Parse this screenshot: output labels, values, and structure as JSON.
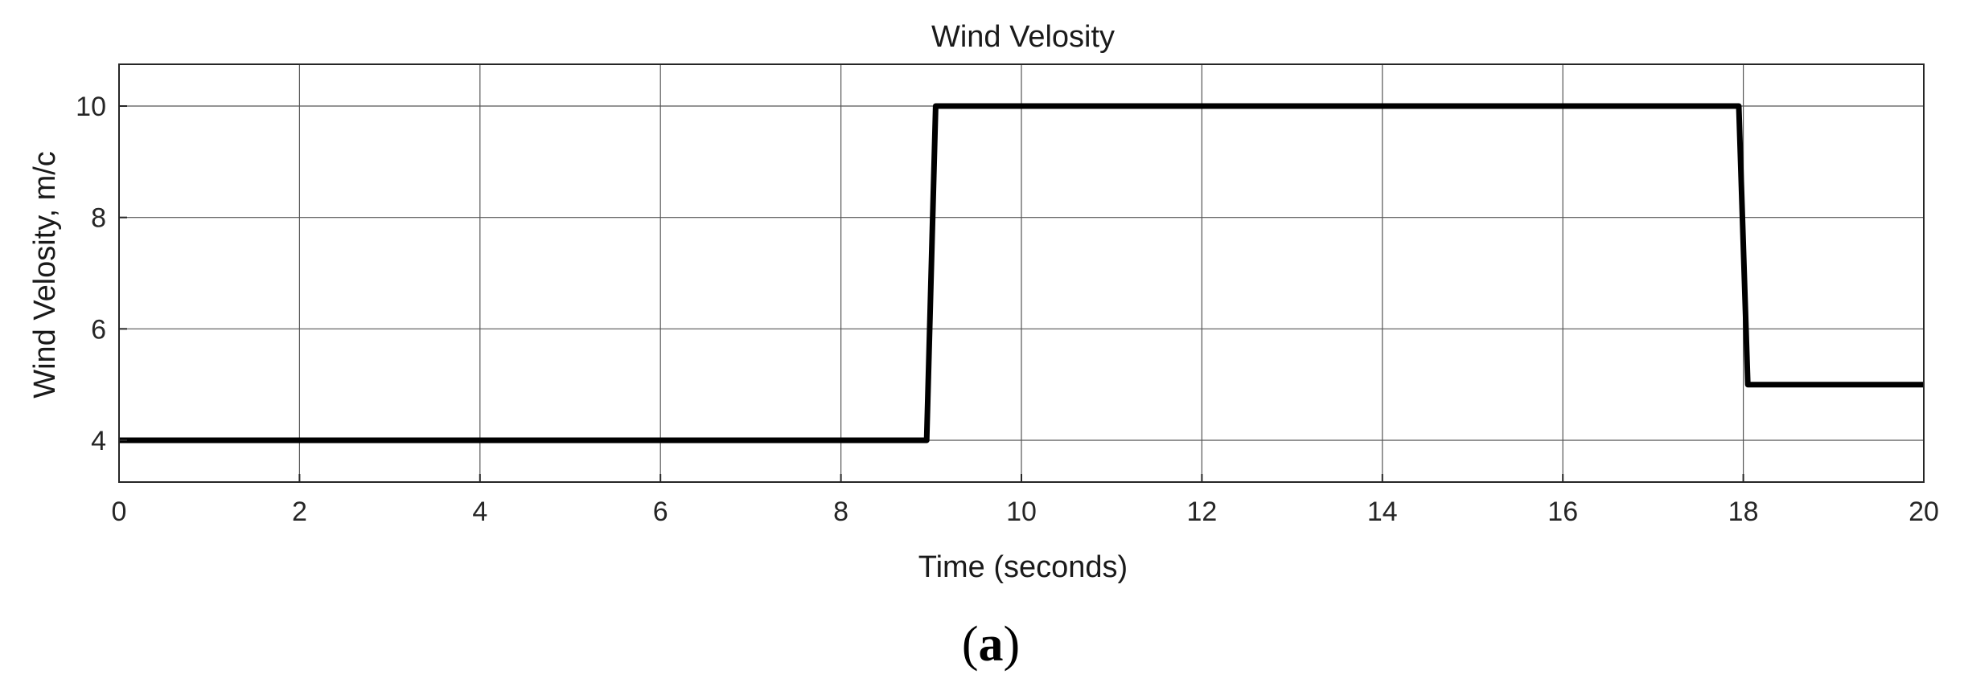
{
  "chart_data": {
    "type": "line",
    "title": "Wind Velosity",
    "xlabel": "Time (seconds)",
    "ylabel": "Wind Velosity, m/c",
    "xlim": [
      0,
      20
    ],
    "ylim": [
      3.25,
      10.75
    ],
    "xticks": [
      0,
      2,
      4,
      6,
      8,
      10,
      12,
      14,
      16,
      18,
      20
    ],
    "yticks": [
      4,
      6,
      8,
      10
    ],
    "grid": true,
    "series": [
      {
        "color": "#000000",
        "x": [
          0,
          8.95,
          9.05,
          17.95,
          18.05,
          20
        ],
        "y": [
          4,
          4,
          10,
          10,
          5,
          5
        ]
      }
    ]
  },
  "panel_label": {
    "open": "(",
    "letter": "a",
    "close": ")"
  }
}
